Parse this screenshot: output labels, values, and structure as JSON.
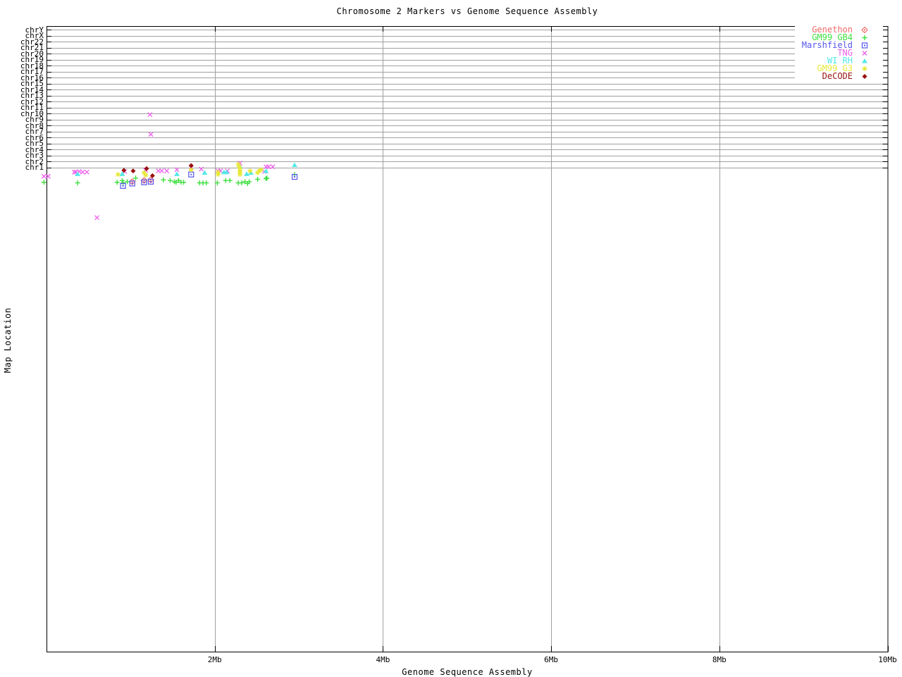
{
  "title": "Chromosome 2 Markers vs Genome Sequence Assembly",
  "axes": {
    "x_label": "Genome Sequence Assembly",
    "y_label": "Map Location",
    "x_ticks": [
      {
        "label": "2Mb",
        "mb": 2
      },
      {
        "label": "4Mb",
        "mb": 4
      },
      {
        "label": "6Mb",
        "mb": 6
      },
      {
        "label": "8Mb",
        "mb": 8
      },
      {
        "label": "10Mb",
        "mb": 10
      }
    ],
    "chromosomes_bottom_to_top": [
      "chr1",
      "chr2",
      "chr3",
      "chr4",
      "chr5",
      "chr6",
      "chr7",
      "chr8",
      "chr9",
      "chr10",
      "chr11",
      "chr12",
      "chr13",
      "chr14",
      "chr15",
      "chr16",
      "chr17",
      "chr18",
      "chr19",
      "chr20",
      "chr21",
      "chr22",
      "chrX",
      "chrY"
    ]
  },
  "colors": {
    "grid": "#a0a0a0",
    "frame": "#000000"
  },
  "chart_data": {
    "type": "scatter",
    "title": "Chromosome 2 Markers vs Genome Sequence Assembly",
    "xlabel": "Genome Sequence Assembly",
    "ylabel": "Map Location",
    "x_unit": "Mb",
    "xlim": [
      0,
      10
    ],
    "grid": "chromosome bands chr1 (bottom) through chrY (top), horizontal gridline per chromosome; vertical gridlines every 2Mb",
    "legend_position": "top-right, opaque white background",
    "y_unit": "rows relative to the chr1 gridline (1 row = one chromosome band spacing; negative = below the chr1 line)",
    "series": [
      {
        "name": "Genethon",
        "color": "#f06a6a",
        "marker": "diamond-open-dot",
        "points": [
          [
            1.02,
            -2.4
          ],
          [
            1.16,
            -2.2
          ],
          [
            1.24,
            -2.1
          ]
        ]
      },
      {
        "name": "GM99 GB4",
        "color": "#3fdf3f",
        "marker": "plus",
        "points": [
          [
            -0.03,
            -2.5
          ],
          [
            0.37,
            -2.6
          ],
          [
            0.84,
            -2.5
          ],
          [
            0.9,
            -2.2
          ],
          [
            0.91,
            -2.6
          ],
          [
            0.96,
            -2.4
          ],
          [
            1.06,
            -1.8
          ],
          [
            1.39,
            -2.1
          ],
          [
            1.47,
            -2.2
          ],
          [
            1.52,
            -2.4
          ],
          [
            1.54,
            -2.5
          ],
          [
            1.57,
            -2.2
          ],
          [
            1.6,
            -2.5
          ],
          [
            1.63,
            -2.5
          ],
          [
            1.82,
            -2.6
          ],
          [
            1.86,
            -2.6
          ],
          [
            1.9,
            -2.6
          ],
          [
            2.03,
            -2.6
          ],
          [
            2.13,
            -2.2
          ],
          [
            2.18,
            -2.2
          ],
          [
            2.28,
            -2.6
          ],
          [
            2.32,
            -2.6
          ],
          [
            2.36,
            -2.4
          ],
          [
            2.39,
            -2.7
          ],
          [
            2.41,
            -2.4
          ],
          [
            2.51,
            -2.0
          ],
          [
            2.61,
            -1.9
          ],
          [
            2.62,
            -1.8
          ],
          [
            2.95,
            -1.2
          ]
        ]
      },
      {
        "name": "Marshfield",
        "color": "#5555ee",
        "marker": "square-open-dot",
        "points": [
          [
            0.91,
            -3.1
          ],
          [
            1.02,
            -2.7
          ],
          [
            1.16,
            -2.5
          ],
          [
            1.24,
            -2.4
          ],
          [
            1.72,
            -1.2
          ],
          [
            2.95,
            -1.6
          ]
        ]
      },
      {
        "name": "TNG",
        "color": "#ee5fee",
        "marker": "cross",
        "points": [
          [
            -0.03,
            -1.5
          ],
          [
            0.02,
            -1.5
          ],
          [
            0.33,
            -0.8
          ],
          [
            0.35,
            -0.8
          ],
          [
            0.39,
            -0.7
          ],
          [
            0.43,
            -0.8
          ],
          [
            0.48,
            -0.8
          ],
          [
            0.6,
            -8.4
          ],
          [
            0.93,
            -0.7
          ],
          [
            1.18,
            -0.5
          ],
          [
            1.23,
            8.8
          ],
          [
            1.24,
            5.5
          ],
          [
            1.33,
            -0.6
          ],
          [
            1.37,
            -0.6
          ],
          [
            1.43,
            -0.6
          ],
          [
            1.55,
            -0.4
          ],
          [
            1.72,
            -0.1
          ],
          [
            1.84,
            -0.3
          ],
          [
            2.04,
            -0.6
          ],
          [
            2.07,
            -0.6
          ],
          [
            2.15,
            -0.6
          ],
          [
            2.3,
            0.7
          ],
          [
            2.59,
            -0.7
          ],
          [
            2.61,
            0.1
          ],
          [
            2.64,
            0.1
          ],
          [
            2.69,
            0.1
          ]
        ]
      },
      {
        "name": "WI RH",
        "color": "#55e8e8",
        "marker": "triangle-filled",
        "points": [
          [
            0.37,
            -1.1
          ],
          [
            0.9,
            -1.1
          ],
          [
            1.55,
            -1.1
          ],
          [
            1.88,
            -0.9
          ],
          [
            2.11,
            -0.8
          ],
          [
            2.14,
            -0.8
          ],
          [
            2.3,
            0.2
          ],
          [
            2.38,
            -1.1
          ],
          [
            2.43,
            -0.9
          ],
          [
            2.61,
            -0.6
          ],
          [
            2.95,
            0.4
          ]
        ]
      },
      {
        "name": "GM99 G3",
        "color": "#e8e83a",
        "marker": "star",
        "points": [
          [
            0.85,
            -1.2
          ],
          [
            1.16,
            -0.9
          ],
          [
            1.18,
            -1.3
          ],
          [
            1.72,
            -0.4
          ],
          [
            2.04,
            -0.8
          ],
          [
            2.04,
            -1.2
          ],
          [
            2.28,
            0.5
          ],
          [
            2.29,
            0.1
          ],
          [
            2.3,
            -0.2
          ],
          [
            2.3,
            -0.6
          ],
          [
            2.3,
            -0.9
          ],
          [
            2.3,
            -1.2
          ],
          [
            2.42,
            -0.6
          ],
          [
            2.51,
            -0.9
          ],
          [
            2.53,
            -0.6
          ],
          [
            2.55,
            -0.4
          ]
        ]
      },
      {
        "name": "DeCODE",
        "color": "#991111",
        "marker": "diamond-filled",
        "points": [
          [
            0.92,
            -0.5
          ],
          [
            1.03,
            -0.6
          ],
          [
            1.19,
            -0.2
          ],
          [
            1.26,
            -1.4
          ],
          [
            1.72,
            0.3
          ]
        ]
      }
    ]
  }
}
